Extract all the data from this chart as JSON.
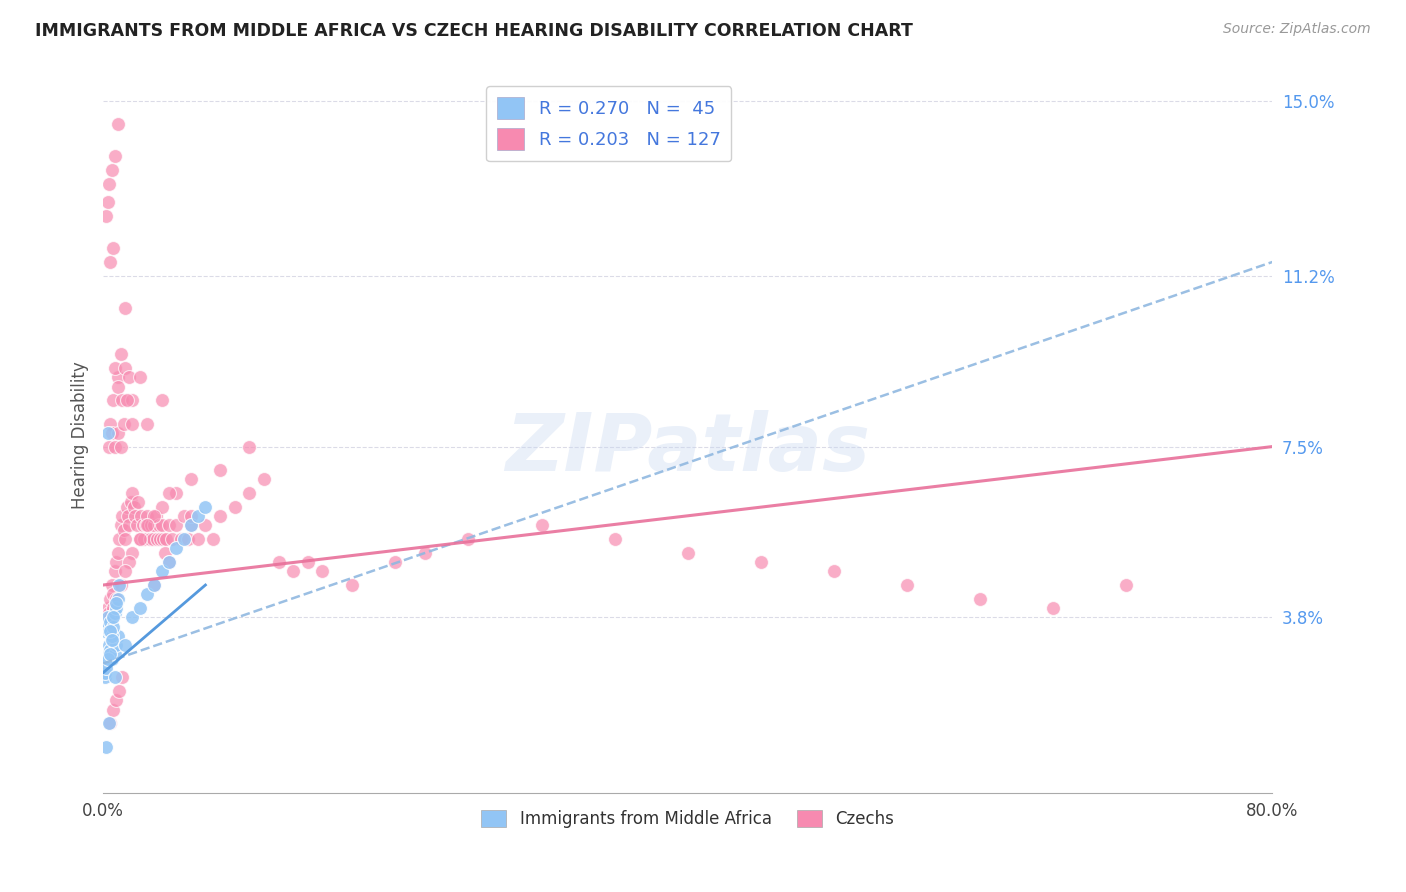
{
  "title": "IMMIGRANTS FROM MIDDLE AFRICA VS CZECH HEARING DISABILITY CORRELATION CHART",
  "source": "Source: ZipAtlas.com",
  "ylabel": "Hearing Disability",
  "yticks": [
    3.8,
    7.5,
    11.2,
    15.0
  ],
  "xlim": [
    0.0,
    80.0
  ],
  "ylim": [
    0.0,
    15.5
  ],
  "legend_blue_R": "0.270",
  "legend_blue_N": "45",
  "legend_pink_R": "0.203",
  "legend_pink_N": "127",
  "blue_color": "#92c5f5",
  "pink_color": "#f78ab0",
  "trendline_blue_color": "#90b8e0",
  "trendline_pink_color": "#e8709a",
  "watermark": "ZIPatlas",
  "blue_scatter_x": [
    0.1,
    0.2,
    0.3,
    0.4,
    0.5,
    0.6,
    0.7,
    0.8,
    0.9,
    1.0,
    0.1,
    0.2,
    0.3,
    0.4,
    0.5,
    0.6,
    0.7,
    0.8,
    0.9,
    1.0,
    0.1,
    0.2,
    0.3,
    0.5,
    0.6,
    0.7,
    0.9,
    1.1,
    1.5,
    2.0,
    2.5,
    3.0,
    3.5,
    4.0,
    4.5,
    5.0,
    5.5,
    6.0,
    6.5,
    7.0,
    0.3,
    0.5,
    0.8,
    0.2,
    0.4
  ],
  "blue_scatter_y": [
    2.5,
    2.8,
    3.0,
    3.2,
    3.1,
    2.9,
    3.3,
    3.0,
    3.2,
    3.4,
    3.5,
    3.6,
    3.8,
    3.5,
    3.7,
    3.4,
    3.6,
    3.9,
    4.0,
    4.2,
    2.6,
    2.7,
    2.9,
    3.5,
    3.3,
    3.8,
    4.1,
    4.5,
    3.2,
    3.8,
    4.0,
    4.3,
    4.5,
    4.8,
    5.0,
    5.3,
    5.5,
    5.8,
    6.0,
    6.2,
    7.8,
    3.0,
    2.5,
    1.0,
    1.5
  ],
  "pink_scatter_x": [
    0.2,
    0.3,
    0.4,
    0.5,
    0.6,
    0.7,
    0.8,
    0.9,
    1.0,
    1.1,
    1.2,
    1.3,
    1.4,
    1.5,
    1.6,
    1.7,
    1.8,
    1.9,
    2.0,
    2.1,
    2.2,
    2.3,
    2.4,
    2.5,
    2.6,
    2.7,
    2.8,
    2.9,
    3.0,
    3.1,
    3.2,
    3.3,
    3.4,
    3.5,
    3.6,
    3.7,
    3.8,
    3.9,
    4.0,
    4.1,
    4.2,
    4.3,
    4.5,
    4.7,
    5.0,
    5.3,
    5.5,
    5.8,
    6.0,
    6.5,
    7.0,
    7.5,
    8.0,
    9.0,
    10.0,
    11.0,
    12.0,
    13.0,
    14.0,
    15.0,
    0.5,
    0.7,
    1.0,
    1.2,
    1.5,
    0.8,
    1.0,
    1.3,
    1.5,
    1.8,
    2.0,
    2.5,
    0.4,
    0.6,
    0.8,
    1.0,
    1.2,
    1.4,
    1.6,
    2.0,
    3.0,
    4.0,
    0.5,
    0.7,
    17.0,
    20.0,
    22.0,
    25.0,
    30.0,
    35.0,
    40.0,
    45.0,
    50.0,
    55.0,
    60.0,
    65.0,
    70.0,
    10.0,
    8.0,
    6.0,
    5.0,
    4.5,
    4.0,
    3.5,
    3.0,
    2.5,
    2.0,
    1.8,
    1.5,
    1.2,
    0.9,
    0.7,
    0.5,
    3.5,
    4.5,
    6.0,
    1.0,
    0.8,
    0.6,
    0.4,
    0.3,
    0.2,
    0.5,
    0.7,
    0.9,
    1.1,
    1.3
  ],
  "pink_scatter_y": [
    3.8,
    4.0,
    3.9,
    4.2,
    4.5,
    4.3,
    4.8,
    5.0,
    5.2,
    5.5,
    5.8,
    6.0,
    5.7,
    5.5,
    6.2,
    6.0,
    5.8,
    6.3,
    6.5,
    6.2,
    6.0,
    5.8,
    6.3,
    5.5,
    6.0,
    5.8,
    5.5,
    5.8,
    6.0,
    5.8,
    5.5,
    5.8,
    5.5,
    5.8,
    6.0,
    5.5,
    5.8,
    5.5,
    5.8,
    5.5,
    5.2,
    5.5,
    5.8,
    5.5,
    5.8,
    5.5,
    6.0,
    5.5,
    5.8,
    5.5,
    5.8,
    5.5,
    6.0,
    6.2,
    6.5,
    6.8,
    5.0,
    4.8,
    5.0,
    4.8,
    8.0,
    8.5,
    9.0,
    9.5,
    10.5,
    9.2,
    8.8,
    8.5,
    9.2,
    9.0,
    8.5,
    9.0,
    7.5,
    7.8,
    7.5,
    7.8,
    7.5,
    8.0,
    8.5,
    8.0,
    8.0,
    8.5,
    11.5,
    11.8,
    4.5,
    5.0,
    5.2,
    5.5,
    5.8,
    5.5,
    5.2,
    5.0,
    4.8,
    4.5,
    4.2,
    4.0,
    4.5,
    7.5,
    7.0,
    6.8,
    6.5,
    6.5,
    6.2,
    6.0,
    5.8,
    5.5,
    5.2,
    5.0,
    4.8,
    4.5,
    4.2,
    4.0,
    3.8,
    4.5,
    5.0,
    6.0,
    14.5,
    13.8,
    13.5,
    13.2,
    12.8,
    12.5,
    1.5,
    1.8,
    2.0,
    2.2,
    2.5
  ],
  "blue_trend_x0": 0.0,
  "blue_trend_x1": 80.0,
  "blue_trend_y0": 2.8,
  "blue_trend_y1": 11.5,
  "pink_trend_x0": 0.0,
  "pink_trend_x1": 80.0,
  "pink_trend_y0": 4.5,
  "pink_trend_y1": 7.5
}
